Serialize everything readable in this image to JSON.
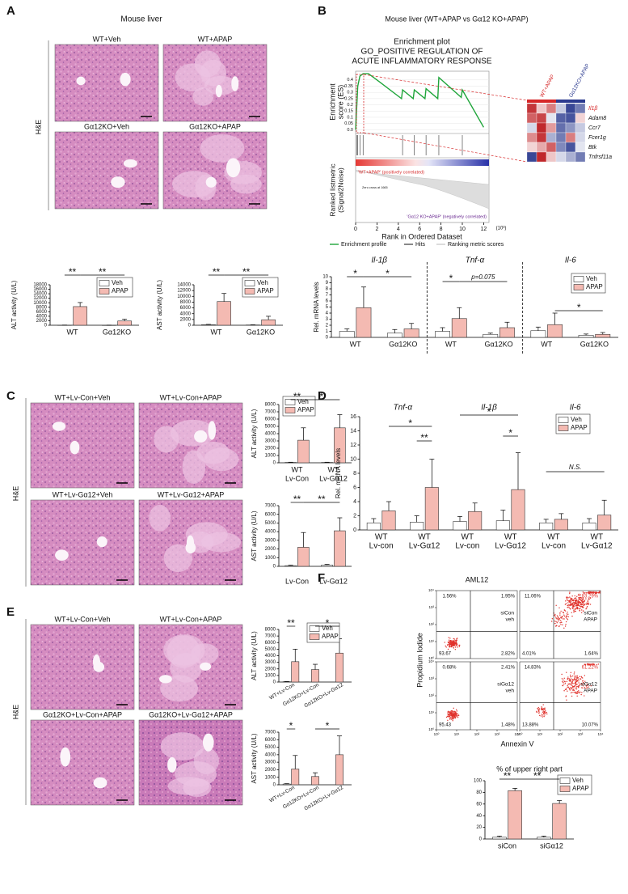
{
  "panels": {
    "A": {
      "label": "A",
      "title": "Mouse liver",
      "stain": "H&E",
      "images": [
        "WT+Veh",
        "WT+APAP",
        "Gα12KO+Veh",
        "Gα12KO+APAP"
      ],
      "charts": [
        {
          "type": "bar",
          "ylabel": "ALT activity (U/L)",
          "ylim": [
            0,
            18000
          ],
          "yticks": [
            0,
            2000,
            4000,
            6000,
            8000,
            10000,
            12000,
            14000,
            16000,
            18000
          ],
          "categories": [
            "WT",
            "Gα12KO"
          ],
          "series": [
            {
              "name": "Veh",
              "color": "#ffffff",
              "values": [
                50,
                30
              ],
              "errors": [
                30,
                20
              ]
            },
            {
              "name": "APAP",
              "color": "#f4bab2",
              "values": [
                8300,
                1900
              ],
              "errors": [
                1800,
                800
              ]
            }
          ],
          "legend": true,
          "annotations": [
            "**",
            "**"
          ]
        },
        {
          "type": "bar",
          "ylabel": "AST activity (U/L)",
          "ylim": [
            0,
            14000
          ],
          "yticks": [
            0,
            2000,
            4000,
            6000,
            8000,
            10000,
            12000,
            14000
          ],
          "categories": [
            "WT",
            "Gα12KO"
          ],
          "series": [
            {
              "name": "Veh",
              "color": "#ffffff",
              "values": [
                200,
                100
              ],
              "errors": [
                100,
                50
              ]
            },
            {
              "name": "APAP",
              "color": "#f4bab2",
              "values": [
                8200,
                1900
              ],
              "errors": [
                2800,
                1200
              ]
            }
          ],
          "legend": true,
          "annotations": [
            "**",
            "**"
          ]
        }
      ]
    },
    "B": {
      "label": "B",
      "title": "Mouse liver (WT+APAP vs Gα12 KO+APAP)",
      "gsea": {
        "type": "line",
        "title": [
          "Enrichment plot",
          "GO_POSITIVE REGULATION OF",
          "ACUTE INFLAMMATORY RESPONSE"
        ],
        "ylabel": [
          "Enrichment",
          "score (ES)"
        ],
        "ylabel2": [
          "Ranked listmetric",
          "(Signal2Noise)"
        ],
        "xlabel": "Rank in Ordered Dataset",
        "xunit": "(10³)",
        "xlim": [
          0,
          12.5
        ],
        "xticks": [
          0,
          2,
          4,
          6,
          8,
          10,
          12
        ],
        "ylim": [
          -0.03,
          0.47
        ],
        "yticks": [
          {
            "value": 0,
            "label": "0.0"
          },
          0.05,
          0.1,
          0.15,
          0.2,
          0.25,
          0.3,
          0.35,
          0.4
        ],
        "series": [
          {
            "name": "Enrichment profile",
            "color": "#1fa53a",
            "x": [
              0,
              0.2,
              0.4,
              0.7,
              1.2,
              2,
              4.3,
              4.4,
              5.4,
              5.5,
              6.5,
              6.6,
              7.7,
              7.8,
              9.9,
              10,
              12
            ],
            "values": [
              0,
              0.35,
              0.43,
              0.45,
              0.45,
              0.4,
              0.25,
              0.32,
              0.25,
              0.32,
              0.25,
              0.33,
              0.25,
              0.42,
              0.26,
              0.32,
              0.02
            ]
          }
        ],
        "hits": [
          0.1,
          0.2,
          0.4,
          0.7,
          4.4,
          5.5,
          6.6,
          7.8,
          10
        ],
        "legend": [
          "Enrichment profile",
          "Hits",
          "Ranking metric scores"
        ],
        "annotations": [
          "'WT+APAP' (positively correlated)",
          "Zero cross at 1665",
          "'Gα12 KO+APAP' (negatively correlated)"
        ]
      },
      "heatmap": {
        "type": "heatmap",
        "column_groups": [
          {
            "name": "WT+APAP",
            "color": "#d62728"
          },
          {
            "name": "Gα12KO+APAP",
            "color": "#2b3a8f"
          }
        ],
        "rows": [
          "Il1β",
          "Adam8",
          "Ccr7",
          "Fcer1g",
          "Btk",
          "Tnfrsf11a"
        ],
        "highlight_row": 0,
        "highlight_color": "#d62728",
        "values": [
          [
            1.4,
            0.4,
            0.9,
            -0.4,
            -1.4,
            -1.0
          ],
          [
            1.1,
            1.3,
            -0.2,
            -1.2,
            -1.3,
            0.3
          ],
          [
            -0.3,
            1.5,
            0.7,
            -1.1,
            -0.8,
            -0.4
          ],
          [
            0.8,
            1.4,
            -0.6,
            -1.0,
            0.9,
            -0.3
          ],
          [
            0.3,
            0.6,
            1.1,
            -0.9,
            -1.3,
            -0.2
          ],
          [
            -1.4,
            1.5,
            0.4,
            -0.3,
            -0.6,
            -1.0
          ]
        ]
      },
      "charts": [
        {
          "type": "bar",
          "ylabel": "Rel. mRNA levels",
          "ylim": [
            0,
            10
          ],
          "yticks": [
            0,
            1,
            2,
            3,
            4,
            5,
            6,
            7,
            8,
            9,
            10
          ],
          "groups": [
            "Il-1β",
            "Tnf-α",
            "Il-6"
          ],
          "categories": [
            "WT",
            "Gα12KO",
            "WT",
            "Gα12KO",
            "WT",
            "Gα12KO"
          ],
          "series": [
            {
              "name": "Veh",
              "color": "#ffffff",
              "values": [
                1.0,
                0.7,
                1.0,
                0.5,
                1.1,
                0.35
              ],
              "errors": [
                0.4,
                0.6,
                0.6,
                0.2,
                0.6,
                0.2
              ]
            },
            {
              "name": "APAP",
              "color": "#f4bab2",
              "values": [
                4.9,
                1.4,
                3.1,
                1.6,
                2.1,
                0.5
              ],
              "errors": [
                3.4,
                0.9,
                1.8,
                0.9,
                1.9,
                0.3
              ]
            }
          ],
          "legend": true,
          "annotations": [
            "*",
            "*",
            "*",
            "p=0.075",
            "*"
          ]
        }
      ]
    },
    "C": {
      "label": "C",
      "stain": "H&E",
      "images": [
        "WT+Lv-Con+Veh",
        "WT+Lv-Con+APAP",
        "WT+Lv-Gα12+Veh",
        "WT+Lv-Gα12+APAP"
      ],
      "charts": [
        {
          "type": "bar",
          "ylabel": "ALT activity (U/L)",
          "ylim": [
            0,
            8000
          ],
          "yticks": [
            0,
            1000,
            2000,
            3000,
            4000,
            5000,
            6000,
            7000,
            8000
          ],
          "categories": [
            [
              "WT",
              "Lv-Con"
            ],
            [
              "WT",
              "Lv-Gα12"
            ]
          ],
          "series": [
            {
              "name": "Veh",
              "color": "#ffffff",
              "values": [
                50,
                50
              ],
              "errors": [
                30,
                30
              ]
            },
            {
              "name": "APAP",
              "color": "#f4bab2",
              "values": [
                3100,
                4800
              ],
              "errors": [
                1700,
                1800
              ]
            }
          ],
          "legend": true,
          "annotations": [
            "**",
            "*"
          ]
        },
        {
          "type": "bar",
          "ylabel": "AST activity (U/L)",
          "ylim": [
            0,
            7000
          ],
          "yticks": [
            0,
            1000,
            2000,
            3000,
            4000,
            5000,
            6000,
            7000
          ],
          "categories": [
            [
              "Lv-Con"
            ],
            [
              "Lv-Gα12"
            ]
          ],
          "series": [
            {
              "name": "Veh",
              "color": "#ffffff",
              "values": [
                80,
                150
              ],
              "errors": [
                50,
                80
              ]
            },
            {
              "name": "APAP",
              "color": "#f4bab2",
              "values": [
                2200,
                4100
              ],
              "errors": [
                1700,
                1500
              ]
            }
          ],
          "annotations": [
            "**",
            "**"
          ]
        }
      ]
    },
    "D": {
      "label": "D",
      "charts": [
        {
          "type": "bar",
          "ylabel": "Rel. mRNA levels",
          "ylim": [
            0,
            16
          ],
          "yticks": [
            0,
            2,
            4,
            6,
            8,
            10,
            12,
            14,
            16
          ],
          "groups": [
            "Tnf-α",
            "Il-1β",
            "Il-6"
          ],
          "categories": [
            [
              "WT",
              "Lv-con"
            ],
            [
              "WT",
              "Lv-Gα12"
            ],
            [
              "WT",
              "Lv-con"
            ],
            [
              "WT",
              "Lv-Gα12"
            ],
            [
              "WT",
              "Lv-con"
            ],
            [
              "WT",
              "Lv-Gα12"
            ]
          ],
          "series": [
            {
              "name": "Veh",
              "color": "#ffffff",
              "values": [
                1.0,
                1.1,
                1.2,
                1.3,
                1.0,
                1.0
              ],
              "errors": [
                0.6,
                0.9,
                0.7,
                1.5,
                0.5,
                0.6
              ]
            },
            {
              "name": "APAP",
              "color": "#f4bab2",
              "values": [
                2.7,
                6.0,
                2.6,
                5.7,
                1.5,
                2.1
              ],
              "errors": [
                1.3,
                4.0,
                1.2,
                5.2,
                0.8,
                2.1
              ]
            }
          ],
          "legend": true,
          "annotations": [
            "*",
            "**",
            "*",
            "*",
            "N.S."
          ]
        }
      ]
    },
    "E": {
      "label": "E",
      "stain": "H&E",
      "images": [
        "WT+Lv-Con+Veh",
        "WT+Lv-Con+APAP",
        "Gα12KO+Lv-Con+APAP",
        "Gα12KO+Lv-Gα12+APAP"
      ],
      "charts": [
        {
          "type": "bar",
          "ylabel": "ALT activity (U/L)",
          "ylim": [
            0,
            8000
          ],
          "yticks": [
            0,
            1000,
            2000,
            3000,
            4000,
            5000,
            6000,
            7000,
            8000
          ],
          "categories": [
            "WT+Lv-Con",
            "Gα12KO+Lv-Con",
            "Gα12KO+Lv-Gα12"
          ],
          "series": [
            {
              "name": "Veh",
              "color": "#ffffff",
              "values": [
                50,
                null,
                null
              ],
              "errors": [
                30,
                null,
                null
              ]
            },
            {
              "name": "APAP",
              "color": "#f4bab2",
              "values": [
                3100,
                1900,
                4400
              ],
              "errors": [
                1900,
                800,
                2200
              ]
            }
          ],
          "legend": true,
          "annotations": [
            "**",
            "*"
          ]
        },
        {
          "type": "bar",
          "ylabel": "AST activity (U/L)",
          "ylim": [
            0,
            7000
          ],
          "yticks": [
            0,
            1000,
            2000,
            3000,
            4000,
            5000,
            6000,
            7000
          ],
          "categories": [
            "WT+Lv-Con",
            "Gα12KO+Lv-Con",
            "Gα12KO+Lv-Gα12"
          ],
          "series": [
            {
              "name": "Veh",
              "color": "#ffffff",
              "values": [
                100,
                null,
                null
              ],
              "errors": [
                50,
                null,
                null
              ]
            },
            {
              "name": "APAP",
              "color": "#f4bab2",
              "values": [
                2100,
                1100,
                4000
              ],
              "errors": [
                1800,
                500,
                2500
              ]
            }
          ],
          "annotations": [
            "*",
            "*"
          ]
        }
      ]
    },
    "F": {
      "label": "F",
      "title": "AML12",
      "flow": {
        "type": "scatter",
        "ylabel": "Propidium Iodide",
        "xlabel": "Annexin V",
        "log": true,
        "xlim": [
          1,
          10000
        ],
        "ticks": [
          {
            "value": 1,
            "label": "10⁰"
          },
          {
            "value": 10,
            "label": "10¹"
          },
          {
            "value": 100,
            "label": "10²"
          },
          {
            "value": 1000,
            "label": "10³"
          },
          {
            "value": 10000,
            "label": "10⁴"
          }
        ],
        "color": "#e0312b",
        "highlight_color": "#e0312b",
        "plots": [
          {
            "label": [
              "siCon",
              "veh"
            ],
            "highlight": false,
            "quadrants": {
              "ul": "1.56%",
              "ur": "1.95%",
              "ll": "93.67",
              "lr": "2.82%"
            }
          },
          {
            "label": [
              "siCon",
              "APAP"
            ],
            "highlight": true,
            "quadrants": {
              "ul": "11.06%",
              "ur": "83.29%",
              "ll": "4.01%",
              "lr": "1.64%"
            }
          },
          {
            "label": [
              "siGα12",
              "veh"
            ],
            "highlight": false,
            "quadrants": {
              "ul": "0.68%",
              "ur": "2.41%",
              "ll": "95.43",
              "lr": "1.48%"
            }
          },
          {
            "label": [
              "siGα12",
              "APAP"
            ],
            "highlight": true,
            "quadrants": {
              "ul": "14.83%",
              "ur": "61.22%",
              "ll": "13.88%",
              "lr": "10.07%"
            }
          }
        ]
      },
      "charts": [
        {
          "type": "bar",
          "title": "% of upper right part",
          "ylim": [
            0,
            100
          ],
          "yticks": [
            0,
            20,
            40,
            60,
            80,
            100
          ],
          "categories": [
            "siCon",
            "siGα12"
          ],
          "series": [
            {
              "name": "Veh",
              "color": "#ffffff",
              "values": [
                3,
                3
              ],
              "errors": [
                2,
                2
              ]
            },
            {
              "name": "APAP",
              "color": "#f4bab2",
              "values": [
                83,
                61
              ],
              "errors": [
                4,
                5
              ]
            }
          ],
          "legend": true,
          "annotations": [
            "**",
            "**"
          ]
        }
      ]
    }
  }
}
